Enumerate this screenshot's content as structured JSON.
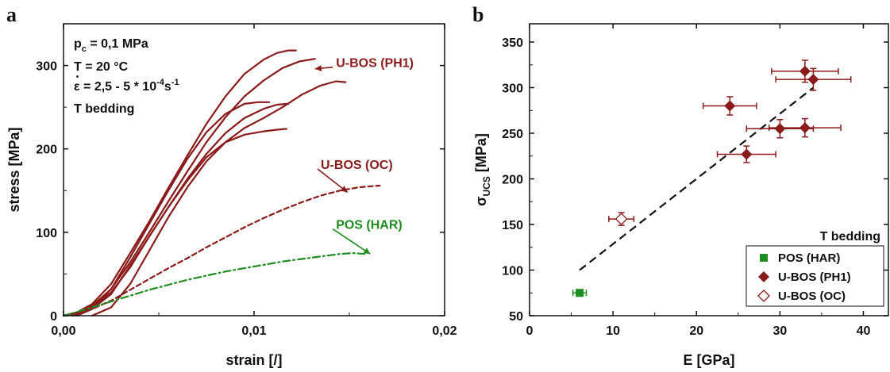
{
  "colors": {
    "ubos": "#8b1a1a",
    "pos": "#1f8c1f",
    "fit": "#111111",
    "axis": "#111111"
  },
  "chart_data": [
    {
      "panel": "a",
      "type": "line",
      "xlabel": "strain [/]",
      "ylabel": "stress [MPa]",
      "xlim": [
        0,
        0.02
      ],
      "ylim": [
        0,
        350
      ],
      "xticks": [
        0,
        0.01,
        0.02
      ],
      "xtick_labels": [
        "0,00",
        "0,01",
        "0,02"
      ],
      "yticks": [
        0,
        100,
        200,
        300
      ],
      "ytick_labels": [
        "0",
        "100",
        "200",
        "300"
      ],
      "conditions": {
        "line1": "p",
        "line1_sub": "c",
        "line1_rest": " = 0,1 MPa",
        "line2": "T  = 20 °C",
        "line3_symbol": "ε",
        "line3_rest": "  = 2,5 - 5 * 10",
        "line3_exp": "-4",
        "line3_unit": "s",
        "line3_unit_exp": "-1",
        "line4": "T bedding"
      },
      "annotations": [
        {
          "text": "U-BOS (PH1)",
          "color": "ubos",
          "at": [
            0.0143,
            298
          ],
          "arrow_to": [
            0.0132,
            296
          ]
        },
        {
          "text": "U-BOS (OC)",
          "color": "ubos",
          "at": [
            0.0135,
            176
          ],
          "arrow_to": [
            0.0149,
            148
          ]
        },
        {
          "text": "POS (HAR)",
          "color": "pos",
          "at": [
            0.0143,
            104
          ],
          "arrow_to": [
            0.0161,
            74
          ]
        }
      ],
      "series": [
        {
          "group": "U-BOS (PH1)",
          "style": "solid",
          "color": "ubos",
          "x": [
            0.0,
            0.0007,
            0.0015,
            0.0025,
            0.0035,
            0.0045,
            0.0055,
            0.0065,
            0.0075,
            0.0085,
            0.0095,
            0.0105,
            0.0112,
            0.0118,
            0.0122
          ],
          "y": [
            0,
            4,
            14,
            38,
            75,
            113,
            153,
            192,
            230,
            263,
            290,
            307,
            315,
            318,
            318
          ]
        },
        {
          "group": "U-BOS (PH1)",
          "style": "solid",
          "color": "ubos",
          "x": [
            0.0,
            0.0007,
            0.0015,
            0.0025,
            0.0035,
            0.0045,
            0.0055,
            0.0065,
            0.0075,
            0.0085,
            0.0095,
            0.0105,
            0.0115,
            0.0124,
            0.0132
          ],
          "y": [
            0,
            4,
            12,
            32,
            64,
            100,
            137,
            173,
            208,
            238,
            263,
            282,
            297,
            305,
            308
          ]
        },
        {
          "group": "U-BOS (PH1)",
          "style": "solid",
          "color": "ubos",
          "x": [
            0.0007,
            0.0015,
            0.0025,
            0.0035,
            0.0045,
            0.0055,
            0.0065,
            0.0075,
            0.0085,
            0.0095,
            0.0102,
            0.0108
          ],
          "y": [
            0,
            8,
            32,
            70,
            110,
            150,
            188,
            220,
            242,
            254,
            256,
            256
          ]
        },
        {
          "group": "U-BOS (PH1)",
          "style": "solid",
          "color": "ubos",
          "x": [
            0.0,
            0.0007,
            0.0015,
            0.0025,
            0.0035,
            0.0045,
            0.0055,
            0.0065,
            0.0075,
            0.0085,
            0.0095,
            0.0105,
            0.0112,
            0.0118
          ],
          "y": [
            0,
            3,
            10,
            28,
            58,
            95,
            130,
            164,
            194,
            219,
            237,
            248,
            253,
            254
          ]
        },
        {
          "group": "U-BOS (PH1)",
          "style": "solid",
          "color": "ubos",
          "x": [
            0.0005,
            0.0015,
            0.0025,
            0.0035,
            0.0045,
            0.0055,
            0.0065,
            0.0075,
            0.0085,
            0.0095,
            0.0105,
            0.0112,
            0.0117
          ],
          "y": [
            0,
            8,
            26,
            60,
            95,
            130,
            162,
            190,
            208,
            217,
            221,
            223,
            224
          ]
        },
        {
          "group": "U-BOS (PH1)",
          "style": "solid",
          "color": "ubos",
          "x": [
            0.0015,
            0.0025,
            0.0035,
            0.0045,
            0.0055,
            0.0065,
            0.0075,
            0.0085,
            0.0095,
            0.0105,
            0.0115,
            0.0125,
            0.0135,
            0.0143,
            0.0148
          ],
          "y": [
            0,
            10,
            38,
            78,
            118,
            154,
            185,
            208,
            225,
            237,
            250,
            265,
            276,
            281,
            280
          ]
        },
        {
          "group": "U-BOS (OC)",
          "style": "dash",
          "color": "ubos",
          "x": [
            0.0,
            0.0008,
            0.0015,
            0.0025,
            0.0035,
            0.0045,
            0.0055,
            0.0065,
            0.0075,
            0.0085,
            0.0095,
            0.0105,
            0.0115,
            0.0125,
            0.0135,
            0.0145,
            0.0155,
            0.0166
          ],
          "y": [
            0,
            3,
            8,
            18,
            31,
            44,
            57,
            69,
            82,
            94,
            106,
            117,
            127,
            136,
            144,
            150,
            154,
            156
          ]
        },
        {
          "group": "POS (HAR)",
          "style": "dashdot",
          "color": "pos",
          "x": [
            0.0,
            0.0008,
            0.0015,
            0.0025,
            0.0035,
            0.0045,
            0.0055,
            0.0065,
            0.0075,
            0.0085,
            0.0095,
            0.0105,
            0.0115,
            0.0125,
            0.0135,
            0.0145,
            0.0152,
            0.0158
          ],
          "y": [
            0,
            5,
            10,
            17,
            24,
            31,
            37,
            43,
            48,
            53,
            57,
            61,
            65,
            68,
            71,
            74,
            75,
            74
          ]
        }
      ]
    },
    {
      "panel": "b",
      "type": "scatter",
      "xlabel": "E [GPa]",
      "ylabel_main": "σ",
      "ylabel_sub": "UCS",
      "ylabel_rest": " [MPa]",
      "xlim": [
        0,
        43
      ],
      "ylim": [
        50,
        370
      ],
      "xticks": [
        0,
        10,
        20,
        30,
        40
      ],
      "xtick_labels": [
        "0",
        "10",
        "20",
        "30",
        "40"
      ],
      "yticks": [
        50,
        100,
        150,
        200,
        250,
        300,
        350
      ],
      "ytick_labels": [
        "50",
        "100",
        "150",
        "200",
        "250",
        "300",
        "350"
      ],
      "note": "T bedding",
      "legend_position": "bottom-right",
      "fit_line": {
        "style": "dash",
        "x": [
          6,
          34
        ],
        "y": [
          100,
          300
        ]
      },
      "series": [
        {
          "name": "POS (HAR)",
          "marker": "square",
          "fill": "pos",
          "points": [
            {
              "x": 6,
              "y": 75,
              "xerr": 0.8,
              "yerr": 2
            }
          ]
        },
        {
          "name": "U-BOS (PH1)",
          "marker": "diamond",
          "fill": "ubos",
          "points": [
            {
              "x": 24,
              "y": 280,
              "xerr": 3.2,
              "yerr": 10
            },
            {
              "x": 26,
              "y": 227,
              "xerr": 3.5,
              "yerr": 9
            },
            {
              "x": 30,
              "y": 255,
              "xerr": 4.0,
              "yerr": 10
            },
            {
              "x": 33,
              "y": 256,
              "xerr": 4.3,
              "yerr": 10
            },
            {
              "x": 33,
              "y": 318,
              "xerr": 4.0,
              "yerr": 12
            },
            {
              "x": 34,
              "y": 309,
              "xerr": 4.5,
              "yerr": 12
            }
          ]
        },
        {
          "name": "U-BOS (OC)",
          "marker": "diamond-open",
          "fill": "ubos",
          "points": [
            {
              "x": 11,
              "y": 156,
              "xerr": 1.5,
              "yerr": 7
            }
          ]
        }
      ]
    }
  ]
}
